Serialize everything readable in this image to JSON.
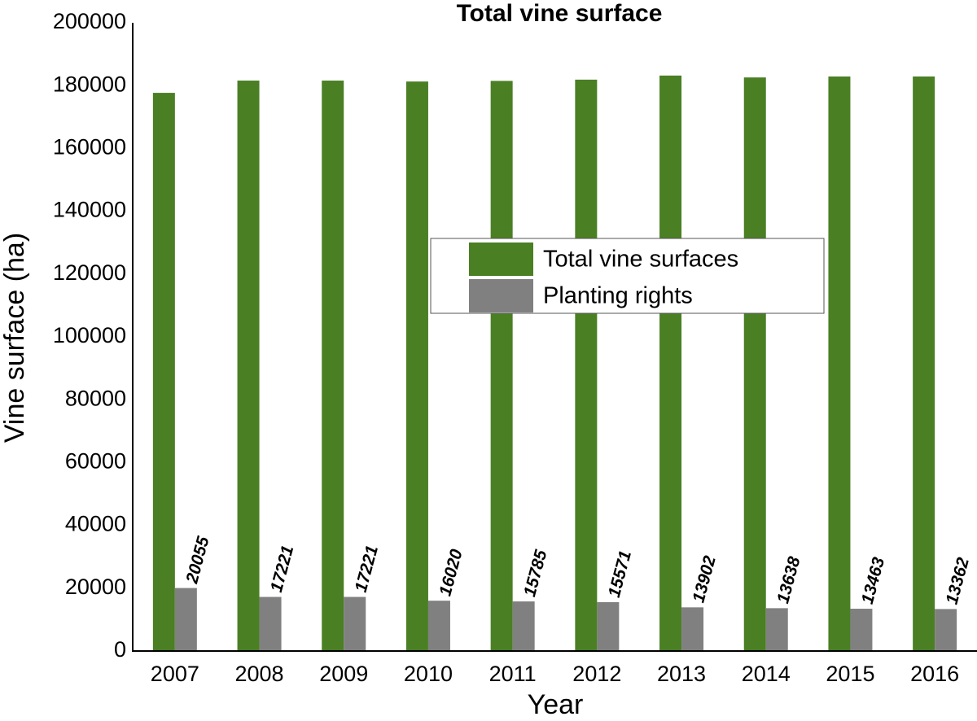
{
  "chart_data": {
    "type": "bar",
    "title": "Total vine surface",
    "x_label": "Year",
    "y_label": "Vine surface (ha)",
    "categories": [
      "2007",
      "2008",
      "2009",
      "2010",
      "2011",
      "2012",
      "2013",
      "2014",
      "2015",
      "2016"
    ],
    "series": [
      {
        "name": "Total vine surfaces",
        "color": "#4a7f23",
        "values": [
          177700,
          181600,
          181600,
          181300,
          181500,
          181900,
          183200,
          182600,
          182900,
          182900
        ]
      },
      {
        "name": "Planting rights",
        "color": "#808080",
        "values": [
          20055,
          17221,
          17221,
          16020,
          15785,
          15571,
          13902,
          13638,
          13463,
          13362
        ]
      }
    ],
    "ylim": [
      0,
      200000
    ],
    "yticks": [
      0,
      20000,
      40000,
      60000,
      80000,
      100000,
      120000,
      140000,
      160000,
      180000,
      200000
    ],
    "grid": false,
    "legend": "center"
  }
}
